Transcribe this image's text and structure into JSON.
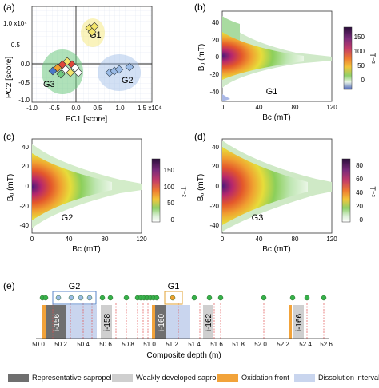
{
  "colors": {
    "sapropel": "#6f6f6f",
    "weak": "#cfcfcf",
    "oxidation": "#f2a33a",
    "dissolution": "#c9d5ee",
    "g1": "#f3e56b",
    "g2": "#9bbbe6",
    "g3": "#6ec97f",
    "dot": "#36b24a"
  },
  "panel_a": {
    "label": "(a)",
    "xlabel": "PC1 [score]",
    "ylabel": "PC2 [score]",
    "scale": "1.0 x10⁴",
    "x_ticks": [
      "-1.0",
      "-0.5",
      "0.0",
      "0.5",
      "1.0",
      "1.5 x10⁴"
    ],
    "y_ticks": [
      "0.5",
      "0.0",
      "-0.5",
      "-1.0"
    ],
    "groups": [
      "G1",
      "G2",
      "G3"
    ]
  },
  "panel_b": {
    "label": "(b)",
    "group": "G1",
    "xlabel": "Bᴄ (mT)",
    "ylabel": "Bᵤ (mT)",
    "cbar_label": "T⁻²",
    "cbar_ticks": [
      "150",
      "100",
      "50",
      "0"
    ],
    "x_ticks": [
      "0",
      "40",
      "80",
      "120"
    ],
    "y_ticks": [
      "40",
      "20",
      "0",
      "-20",
      "-40"
    ]
  },
  "panel_c": {
    "label": "(c)",
    "group": "G2",
    "xlabel": "Bᴄ (mT)",
    "ylabel": "Bᵤ (mT)",
    "cbar_label": "T⁻²",
    "cbar_ticks": [
      "150",
      "100",
      "50",
      "0"
    ],
    "x_ticks": [
      "0",
      "40",
      "80",
      "120"
    ],
    "y_ticks": [
      "40",
      "20",
      "0",
      "-20",
      "-40"
    ]
  },
  "panel_d": {
    "label": "(d)",
    "group": "G3",
    "xlabel": "Bᴄ (mT)",
    "ylabel": "Bᵤ (mT)",
    "cbar_label": "T⁻²",
    "cbar_ticks": [
      "80",
      "60",
      "40",
      "20",
      "0"
    ],
    "x_ticks": [
      "0",
      "40",
      "80",
      "120"
    ],
    "y_ticks": [
      "40",
      "20",
      "0",
      "-20",
      "-40"
    ]
  },
  "panel_e": {
    "label": "(e)",
    "xlabel": "Composite depth (m)",
    "x_ticks": [
      "50.0",
      "50.2",
      "50.4",
      "50.6",
      "50.8",
      "51.0",
      "51.2",
      "51.4",
      "51.6",
      "51.8",
      "52.0",
      "52.2",
      "52.4",
      "52.6"
    ],
    "sapropels": [
      "i-156",
      "i-158",
      "i-160",
      "i-162",
      "i-166"
    ],
    "group_labels": [
      "G2",
      "G1"
    ]
  },
  "legend": {
    "sapropel": "Representative sapropel",
    "weak": "Weakly developed sapropel",
    "oxidation": "Oxidation front",
    "dissolution": "Dissolution interval"
  }
}
